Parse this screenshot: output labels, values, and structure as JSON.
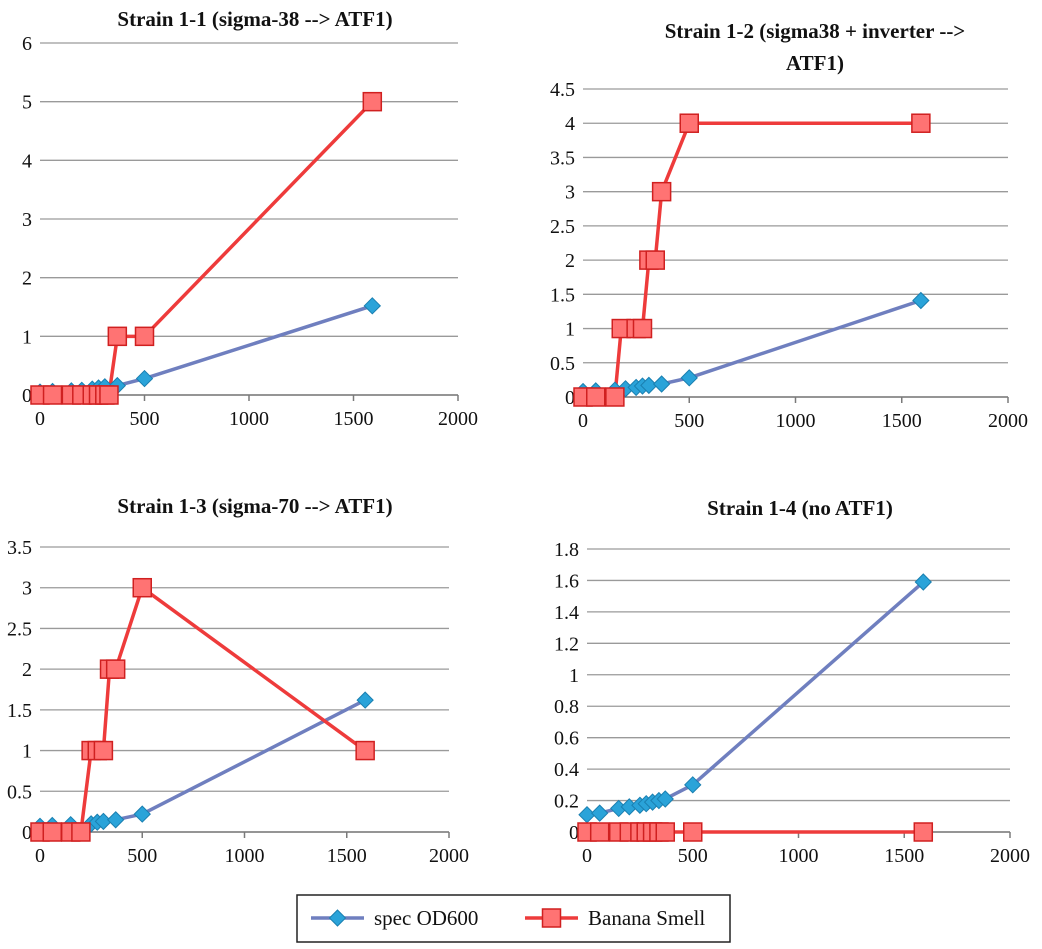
{
  "colors": {
    "od600": "#6f7fbf",
    "banana": "#ee3b3b",
    "od600_marker": "#2aa3d9",
    "banana_marker": "#ff7373",
    "grid": "#9a9a9a"
  },
  "legend": [
    {
      "label": "spec OD600",
      "series": "od600",
      "marker": "diamond"
    },
    {
      "label": "Banana Smell",
      "series": "banana",
      "marker": "square"
    }
  ],
  "chart_data": [
    {
      "type": "line",
      "title_lines": [
        "Strain 1-1 (sigma-38 --> ATF1)"
      ],
      "xlim": [
        0,
        2000
      ],
      "xticks": [
        "0",
        "500",
        "1000",
        "1500",
        "2000"
      ],
      "ylim": [
        0,
        6
      ],
      "yticks": [
        "0",
        "1",
        "2",
        "3",
        "4",
        "5",
        "6"
      ],
      "legend_placement": "bottom",
      "series": [
        {
          "name": "spec OD600",
          "key": "od600",
          "x": [
            0,
            60,
            150,
            200,
            250,
            280,
            310,
            370,
            500,
            1590
          ],
          "y": [
            0.05,
            0.06,
            0.07,
            0.08,
            0.1,
            0.12,
            0.14,
            0.16,
            0.28,
            1.52
          ]
        },
        {
          "name": "Banana Smell",
          "key": "banana",
          "x": [
            0,
            60,
            150,
            200,
            250,
            280,
            310,
            330,
            370,
            500,
            1590
          ],
          "y": [
            0,
            0,
            0,
            0,
            0,
            0,
            0,
            0,
            1,
            1,
            5
          ]
        }
      ]
    },
    {
      "type": "line",
      "title_lines": [
        "Strain 1-2 (sigma38 + inverter -->",
        "ATF1)"
      ],
      "xlim": [
        0,
        2000
      ],
      "xticks": [
        "0",
        "500",
        "1000",
        "1500",
        "2000"
      ],
      "ylim": [
        0,
        4.5
      ],
      "yticks": [
        "0",
        "0.5",
        "1",
        "1.5",
        "2",
        "2.5",
        "3",
        "3.5",
        "4",
        "4.5"
      ],
      "legend_placement": "bottom",
      "series": [
        {
          "name": "spec OD600",
          "key": "od600",
          "x": [
            0,
            60,
            150,
            200,
            250,
            280,
            310,
            370,
            500,
            1590
          ],
          "y": [
            0.08,
            0.09,
            0.1,
            0.12,
            0.14,
            0.16,
            0.17,
            0.19,
            0.28,
            1.41
          ]
        },
        {
          "name": "Banana Smell",
          "key": "banana",
          "x": [
            0,
            60,
            150,
            180,
            250,
            280,
            310,
            340,
            370,
            500,
            1590
          ],
          "y": [
            0,
            0,
            0,
            1,
            1,
            1,
            2,
            2,
            3,
            4,
            4
          ]
        }
      ]
    },
    {
      "type": "line",
      "title_lines": [
        "Strain 1-3 (sigma-70 --> ATF1)"
      ],
      "xlim": [
        0,
        2000
      ],
      "xticks": [
        "0",
        "500",
        "1000",
        "1500",
        "2000"
      ],
      "ylim": [
        0,
        3.5
      ],
      "yticks": [
        "0",
        "0.5",
        "1",
        "1.5",
        "2",
        "2.5",
        "3",
        "3.5"
      ],
      "legend_placement": "bottom",
      "series": [
        {
          "name": "spec OD600",
          "key": "od600",
          "x": [
            0,
            60,
            150,
            250,
            280,
            310,
            370,
            500,
            1590
          ],
          "y": [
            0.07,
            0.08,
            0.09,
            0.1,
            0.12,
            0.13,
            0.15,
            0.22,
            1.62
          ]
        },
        {
          "name": "Banana Smell",
          "key": "banana",
          "x": [
            0,
            60,
            150,
            200,
            250,
            280,
            310,
            340,
            370,
            500,
            1590
          ],
          "y": [
            0,
            0,
            0,
            0,
            1,
            1,
            1,
            2,
            2,
            3,
            1
          ]
        }
      ]
    },
    {
      "type": "line",
      "title_lines": [
        "Strain 1-4 (no ATF1)"
      ],
      "xlim": [
        0,
        2000
      ],
      "xticks": [
        "0",
        "500",
        "1000",
        "1500",
        "2000"
      ],
      "ylim": [
        0,
        1.8
      ],
      "yticks": [
        "0",
        "0.2",
        "0.4",
        "0.6",
        "0.8",
        "1",
        "1.2",
        "1.4",
        "1.6",
        "1.8"
      ],
      "legend_placement": "bottom",
      "series": [
        {
          "name": "spec OD600",
          "key": "od600",
          "x": [
            0,
            60,
            150,
            200,
            250,
            280,
            310,
            340,
            370,
            500,
            1590
          ],
          "y": [
            0.11,
            0.12,
            0.15,
            0.16,
            0.17,
            0.18,
            0.19,
            0.2,
            0.21,
            0.3,
            1.59
          ]
        },
        {
          "name": "Banana Smell",
          "key": "banana",
          "x": [
            0,
            60,
            150,
            200,
            250,
            280,
            310,
            340,
            370,
            500,
            1590
          ],
          "y": [
            0,
            0,
            0,
            0,
            0,
            0,
            0,
            0,
            0,
            0,
            0
          ]
        }
      ]
    }
  ]
}
